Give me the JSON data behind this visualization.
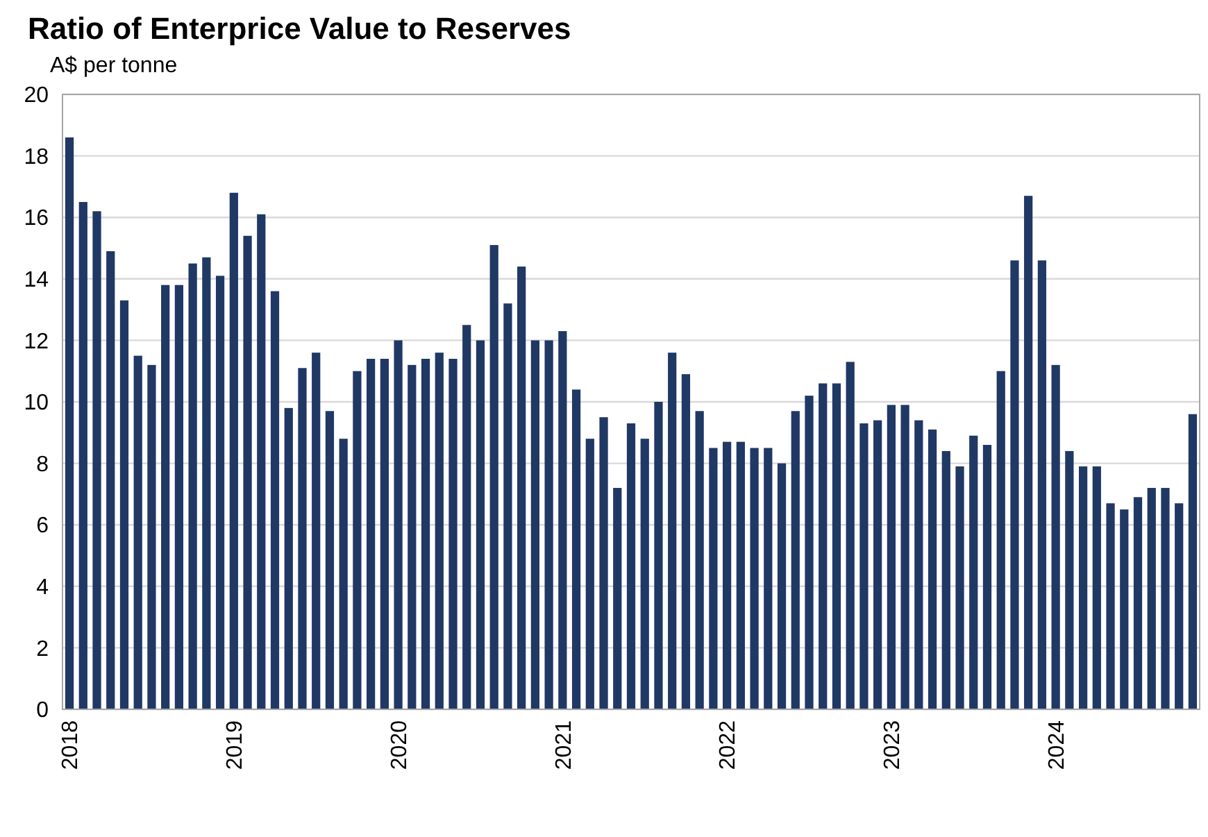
{
  "chart_data": {
    "type": "bar",
    "title": "Ratio of Enterprice Value to Reserves",
    "subtitle": "A$ per tonne",
    "categories": [
      "2018",
      null,
      null,
      null,
      null,
      null,
      null,
      null,
      null,
      null,
      null,
      null,
      "2019",
      null,
      null,
      null,
      null,
      null,
      null,
      null,
      null,
      null,
      null,
      null,
      "2020",
      null,
      null,
      null,
      null,
      null,
      null,
      null,
      null,
      null,
      null,
      null,
      "2021",
      null,
      null,
      null,
      null,
      null,
      null,
      null,
      null,
      null,
      null,
      null,
      "2022",
      null,
      null,
      null,
      null,
      null,
      null,
      null,
      null,
      null,
      null,
      null,
      "2023",
      null,
      null,
      null,
      null,
      null,
      null,
      null,
      null,
      null,
      null,
      null,
      "2024",
      null,
      null,
      null,
      null,
      null,
      null,
      null,
      null,
      null,
      null
    ],
    "values": [
      18.6,
      16.5,
      16.2,
      14.9,
      13.3,
      11.5,
      11.2,
      13.8,
      13.8,
      14.5,
      14.7,
      14.1,
      16.8,
      15.4,
      16.1,
      13.6,
      9.8,
      11.1,
      11.6,
      9.7,
      8.8,
      11.0,
      11.4,
      11.4,
      12.0,
      11.2,
      11.4,
      11.6,
      11.4,
      12.5,
      12.0,
      15.1,
      13.2,
      14.4,
      12.0,
      12.0,
      12.3,
      10.4,
      8.8,
      9.5,
      7.2,
      9.3,
      8.8,
      10.0,
      11.6,
      10.9,
      9.7,
      8.5,
      8.7,
      8.7,
      8.5,
      8.5,
      8.0,
      9.7,
      10.2,
      10.6,
      10.6,
      11.3,
      9.3,
      9.4,
      9.9,
      9.9,
      9.4,
      9.1,
      8.4,
      7.9,
      8.9,
      8.6,
      11.0,
      14.6,
      16.7,
      14.6,
      11.2,
      8.4,
      7.9,
      7.9,
      6.7,
      6.5,
      6.9,
      7.2,
      7.2,
      6.7,
      9.6
    ],
    "color": "#203864",
    "ylim": [
      0,
      20
    ],
    "yticks": [
      0,
      2,
      4,
      6,
      8,
      10,
      12,
      14,
      16,
      18,
      20
    ],
    "grid": "y"
  }
}
